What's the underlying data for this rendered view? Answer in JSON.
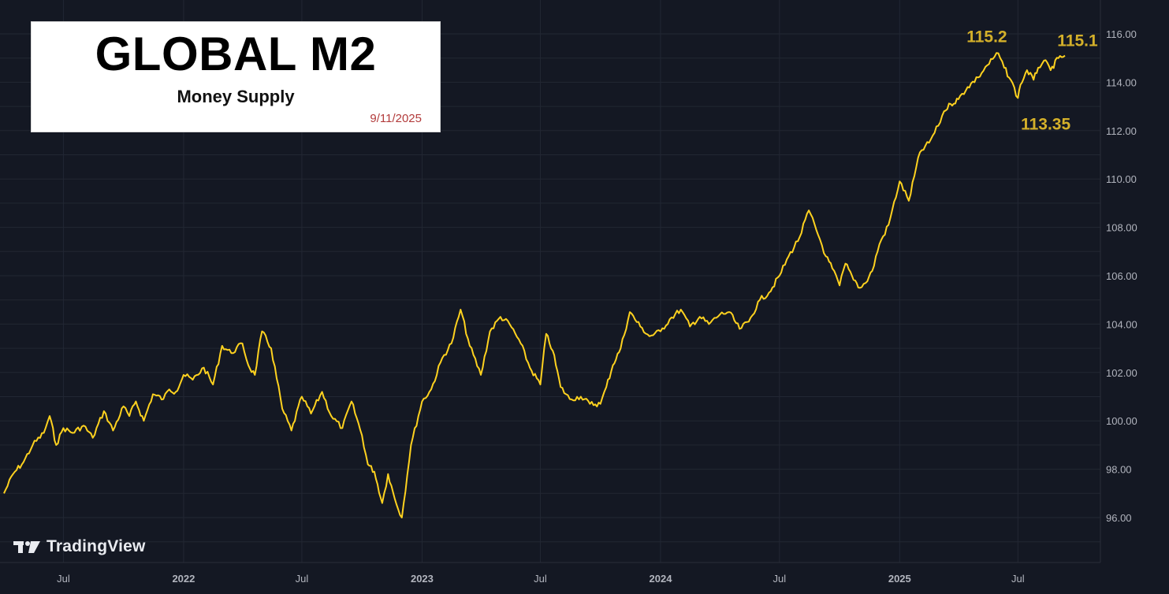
{
  "title_box": {
    "title": "GLOBAL M2",
    "subtitle": "Money Supply",
    "date": "9/11/2025"
  },
  "watermark": {
    "text": "TradingView",
    "icon": "tradingview-logo-icon"
  },
  "colors": {
    "background": "#141823",
    "grid": "#222733",
    "line": "#FFD21F",
    "annotation": "#D4B02A",
    "axis_text": "#B2B5BE"
  },
  "chart_data": {
    "type": "line",
    "title": "GLOBAL M2",
    "subtitle": "Money Supply",
    "ylim": [
      94.5,
      116.5
    ],
    "y_ticks": [
      "96.00",
      "98.00",
      "100.00",
      "102.00",
      "104.00",
      "106.00",
      "108.00",
      "110.00",
      "112.00",
      "114.00",
      "116.00"
    ],
    "x_ticks": [
      {
        "label": "Jul",
        "date": "2021-07"
      },
      {
        "label": "2022",
        "date": "2022-01"
      },
      {
        "label": "Jul",
        "date": "2022-07"
      },
      {
        "label": "2023",
        "date": "2023-01"
      },
      {
        "label": "Jul",
        "date": "2023-07"
      },
      {
        "label": "2024",
        "date": "2024-01"
      },
      {
        "label": "Jul",
        "date": "2024-07"
      },
      {
        "label": "2025",
        "date": "2025-01"
      },
      {
        "label": "Jul",
        "date": "2025-07"
      }
    ],
    "grid": true,
    "series": [
      {
        "x": [
          "2021-04",
          "2021-04-15",
          "2021-05",
          "2021-05-15",
          "2021-06-01",
          "2021-06-10",
          "2021-06-20",
          "2021-07",
          "2021-07-15",
          "2021-08",
          "2021-08-15",
          "2021-09",
          "2021-09-15",
          "2021-10",
          "2021-10-10",
          "2021-10-20",
          "2021-11",
          "2021-11-15",
          "2021-12",
          "2021-12-10",
          "2021-12-20",
          "2022-01",
          "2022-01-15",
          "2022-02",
          "2022-02-15",
          "2022-03",
          "2022-03-15",
          "2022-04",
          "2022-04-10",
          "2022-04-20",
          "2022-05",
          "2022-05-15",
          "2022-06",
          "2022-06-15",
          "2022-07",
          "2022-07-15",
          "2022-08",
          "2022-08-15",
          "2022-09",
          "2022-09-15",
          "2022-10",
          "2022-10-10",
          "2022-10-20",
          "2022-11",
          "2022-11-10",
          "2022-11-20",
          "2022-12",
          "2022-12-15",
          "2023-01",
          "2023-01-15",
          "2023-02",
          "2023-02-15",
          "2023-03",
          "2023-03-15",
          "2023-04",
          "2023-04-15",
          "2023-05",
          "2023-05-15",
          "2023-06",
          "2023-06-15",
          "2023-07",
          "2023-07-10",
          "2023-07-20",
          "2023-08",
          "2023-08-15",
          "2023-09",
          "2023-09-15",
          "2023-10",
          "2023-10-10",
          "2023-10-20",
          "2023-11",
          "2023-11-15",
          "2023-12",
          "2023-12-15",
          "2024-01",
          "2024-01-15",
          "2024-02",
          "2024-02-15",
          "2024-03",
          "2024-03-15",
          "2024-04",
          "2024-04-15",
          "2024-05",
          "2024-05-15",
          "2024-06",
          "2024-06-15",
          "2024-07",
          "2024-07-15",
          "2024-08",
          "2024-08-15",
          "2024-09",
          "2024-09-10",
          "2024-09-20",
          "2024-10",
          "2024-10-10",
          "2024-10-20",
          "2024-11",
          "2024-11-10",
          "2024-11-20",
          "2024-12",
          "2024-12-15",
          "2025-01",
          "2025-01-15",
          "2025-02",
          "2025-02-15",
          "2025-03",
          "2025-03-10",
          "2025-03-20",
          "2025-04",
          "2025-04-15",
          "2025-05",
          "2025-05-15",
          "2025-06",
          "2025-06-10",
          "2025-06-20",
          "2025-07",
          "2025-07-05",
          "2025-07-15",
          "2025-07-25",
          "2025-08",
          "2025-08-10",
          "2025-08-20",
          "2025-09",
          "2025-09-11"
        ],
        "values": [
          97.0,
          97.8,
          98.3,
          99.0,
          99.5,
          100.2,
          99.0,
          99.7,
          99.5,
          99.8,
          99.3,
          100.4,
          99.6,
          100.6,
          100.2,
          100.8,
          100.0,
          101.1,
          100.9,
          101.3,
          101.2,
          101.9,
          101.7,
          102.2,
          101.5,
          103.1,
          102.8,
          103.2,
          102.3,
          101.9,
          103.7,
          103.0,
          100.5,
          99.6,
          101.0,
          100.3,
          101.2,
          100.2,
          99.7,
          100.8,
          99.4,
          98.2,
          97.9,
          96.6,
          97.8,
          96.8,
          96.0,
          99.0,
          100.8,
          101.3,
          102.6,
          103.2,
          104.6,
          103.1,
          101.9,
          103.7,
          104.3,
          104.0,
          103.2,
          102.2,
          101.5,
          103.6,
          102.9,
          101.4,
          100.9,
          101.0,
          100.7,
          100.7,
          101.4,
          102.3,
          103.0,
          104.5,
          103.9,
          103.5,
          103.7,
          104.2,
          104.6,
          103.9,
          104.3,
          104.0,
          104.4,
          104.5,
          103.8,
          104.1,
          105.0,
          105.3,
          106.0,
          106.8,
          107.6,
          108.7,
          107.5,
          106.8,
          106.3,
          105.6,
          106.5,
          106.0,
          105.5,
          105.7,
          106.2,
          107.3,
          108.1,
          109.9,
          109.1,
          111.1,
          111.5,
          112.2,
          112.8,
          113.1,
          113.3,
          113.8,
          114.2,
          114.7,
          115.2,
          114.6,
          114.1,
          113.35,
          113.9,
          114.5,
          114.1,
          114.6,
          114.9,
          114.5,
          115.0,
          115.1
        ]
      }
    ],
    "annotations": [
      {
        "text": "115.2",
        "date": "2025-06-10",
        "value": 115.2
      },
      {
        "text": "115.1",
        "date": "2025-09-11",
        "value": 115.1
      },
      {
        "text": "113.35",
        "date": "2025-07-05",
        "value": 113.35
      }
    ]
  }
}
